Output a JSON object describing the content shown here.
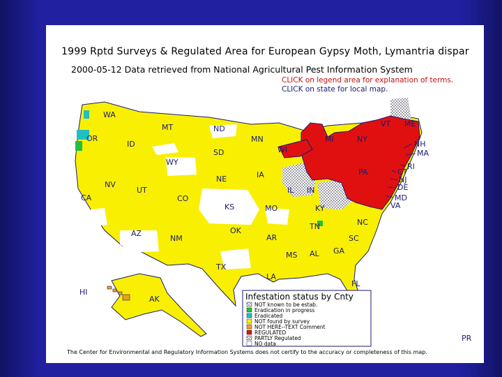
{
  "slide": {
    "title": "1999 Rptd Surveys & Regulated Area for European Gypsy Moth, Lymantria dispar",
    "subtitle": "2000-05-12  Data retrieved from National Agricultural Pest Information System",
    "click_legend": "CLICK on legend area for explanation of terms.",
    "click_state": "CLICK on state for local map.",
    "credit": "The Center for Environmental and Regulatory Information Systems does not certify to the accuracy or completeness of this map."
  },
  "colors": {
    "not_found": "#f8f000",
    "regulated": "#e01010",
    "partly": "#b0b0b8",
    "eradication": "#20c040",
    "eradicated": "#20c0c0",
    "comment": "#f0a020",
    "outline": "#1a1a70",
    "background": "#2020a0"
  },
  "states": [
    {
      "code": "WA"
    },
    {
      "code": "OR"
    },
    {
      "code": "CA"
    },
    {
      "code": "ID"
    },
    {
      "code": "NV"
    },
    {
      "code": "MT"
    },
    {
      "code": "WY"
    },
    {
      "code": "UT"
    },
    {
      "code": "AZ"
    },
    {
      "code": "CO"
    },
    {
      "code": "NM"
    },
    {
      "code": "ND"
    },
    {
      "code": "SD"
    },
    {
      "code": "NE"
    },
    {
      "code": "KS"
    },
    {
      "code": "OK"
    },
    {
      "code": "TX"
    },
    {
      "code": "MN"
    },
    {
      "code": "IA"
    },
    {
      "code": "MO"
    },
    {
      "code": "AR"
    },
    {
      "code": "LA"
    },
    {
      "code": "WI"
    },
    {
      "code": "IL"
    },
    {
      "code": "MI"
    },
    {
      "code": "IN"
    },
    {
      "code": "KY"
    },
    {
      "code": "TN"
    },
    {
      "code": "MS"
    },
    {
      "code": "AL"
    },
    {
      "code": "GA"
    },
    {
      "code": "FL"
    },
    {
      "code": "SC"
    },
    {
      "code": "NC"
    },
    {
      "code": "VA"
    },
    {
      "code": "PA"
    },
    {
      "code": "NY"
    },
    {
      "code": "VT"
    },
    {
      "code": "ME"
    },
    {
      "code": "NH"
    },
    {
      "code": "MA"
    },
    {
      "code": "RI"
    },
    {
      "code": "CT"
    },
    {
      "code": "NJ"
    },
    {
      "code": "DE"
    },
    {
      "code": "MD"
    },
    {
      "code": "AK"
    },
    {
      "code": "HI"
    },
    {
      "code": "PR"
    }
  ],
  "legend": {
    "title": "Infestation status by Cnty",
    "items": [
      {
        "label": "NOT known to be estab.",
        "color": "#ffffff"
      },
      {
        "label": "Eradication in progress",
        "color": "#20c040"
      },
      {
        "label": "Eradicated",
        "color": "#20c0c0"
      },
      {
        "label": "NOT found by survey",
        "color": "#f8f000"
      },
      {
        "label": "NOT HERE--TEXT Comment",
        "color": "#f0a020"
      },
      {
        "label": "REGULATED",
        "color": "#e01010"
      },
      {
        "label": "PARTLY Regulated",
        "color": "#b0b0b8"
      },
      {
        "label": "NO data",
        "color": "#ffffff"
      }
    ]
  }
}
